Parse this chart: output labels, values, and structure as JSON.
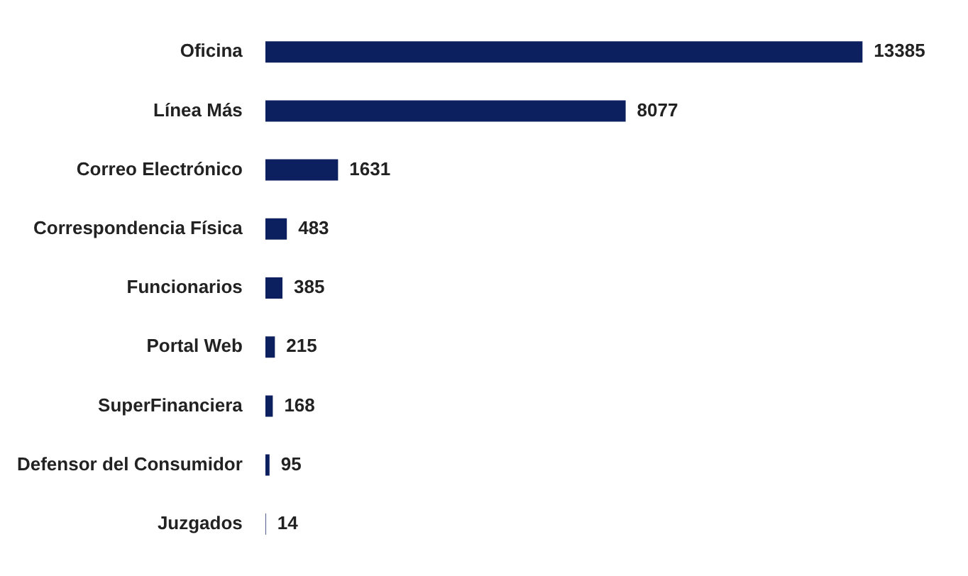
{
  "chart_data": {
    "type": "bar",
    "orientation": "horizontal",
    "categories": [
      "Oficina",
      "Línea Más",
      "Correo Electrónico",
      "Correspondencia Física",
      "Funcionarios",
      "Portal Web",
      "SuperFinanciera",
      "Defensor del Consumidor",
      "Juzgados"
    ],
    "values": [
      13385,
      8077,
      1631,
      483,
      385,
      215,
      168,
      95,
      14
    ],
    "color": "#0c1f5e",
    "data_labels": true,
    "legend": false
  }
}
